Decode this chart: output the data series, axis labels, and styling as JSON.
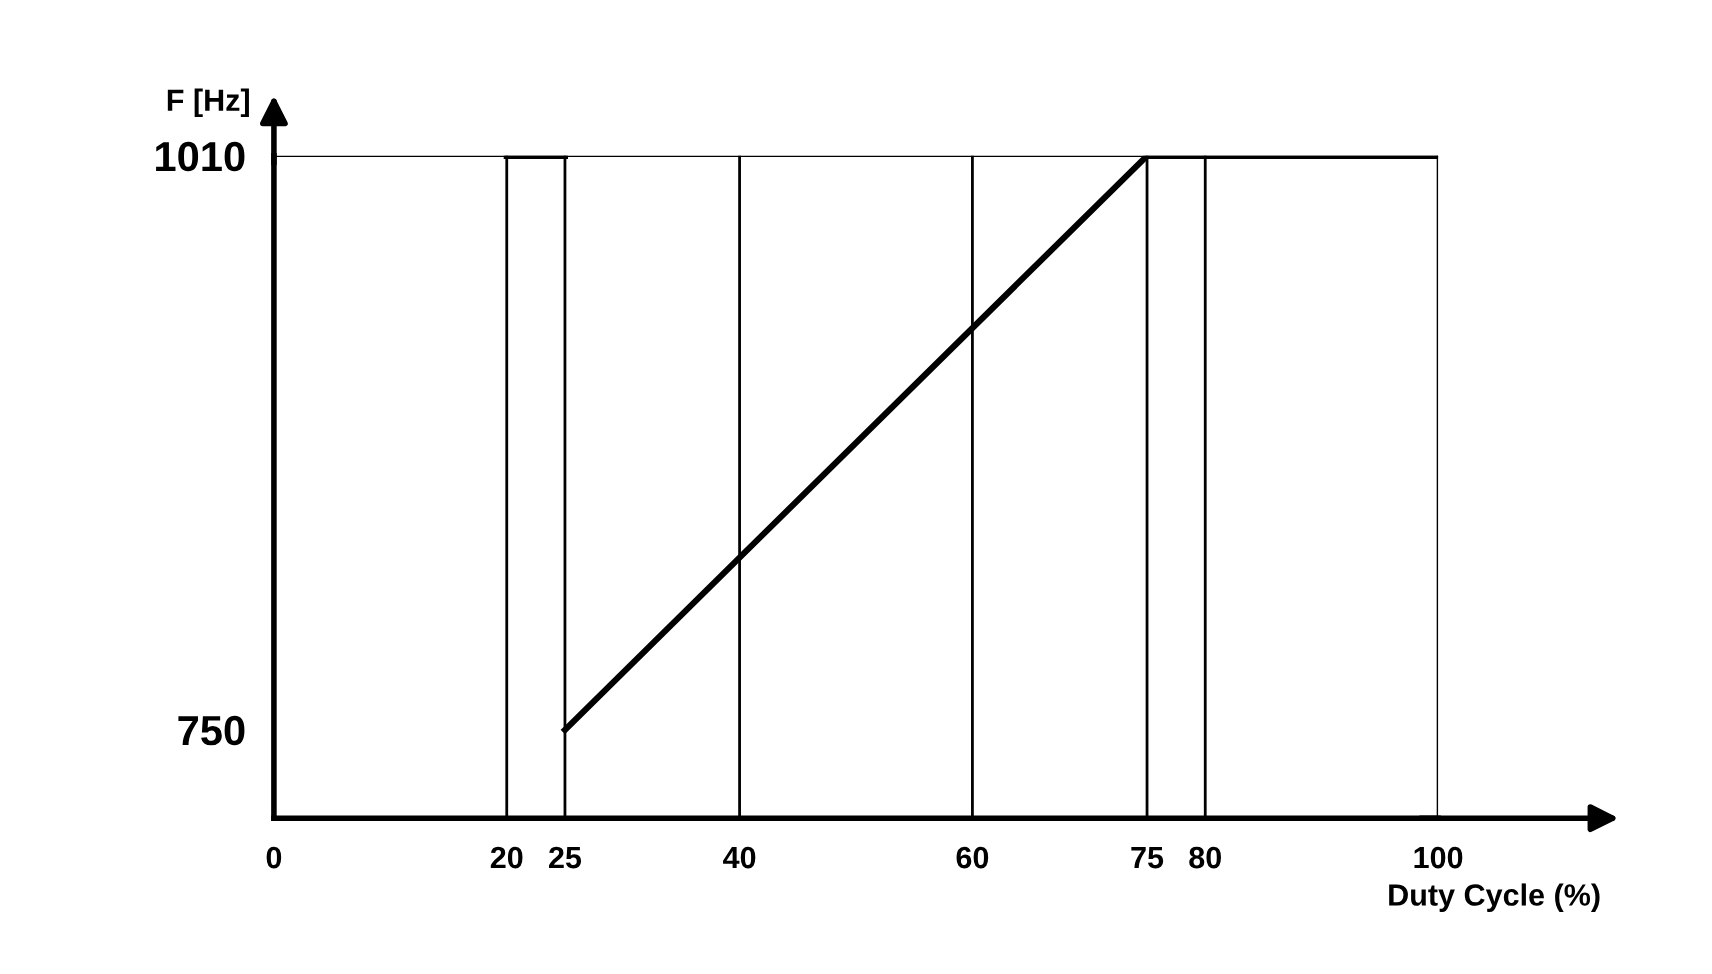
{
  "chart_data": {
    "type": "line",
    "xlabel": "Duty Cycle (%)",
    "ylabel": "F [Hz]",
    "series": [
      {
        "color": "#000000",
        "x": [
          20,
          25
        ],
        "values": [
          1010,
          1010
        ]
      },
      {
        "color": "#000000",
        "x": [
          25,
          75,
          100
        ],
        "values": [
          750,
          1010,
          1010
        ]
      }
    ],
    "xlim": [
      0,
      100
    ],
    "ylim": [
      710,
      1010
    ],
    "xticks": [
      0,
      20,
      25,
      40,
      60,
      75,
      80,
      100
    ],
    "yticks": [
      750,
      1010
    ],
    "grid": "x",
    "marker": "none",
    "line_style": "solid",
    "legend": false,
    "ref_lines": [
      {
        "axis": "y",
        "value": 1010,
        "color": "#000000"
      }
    ]
  }
}
